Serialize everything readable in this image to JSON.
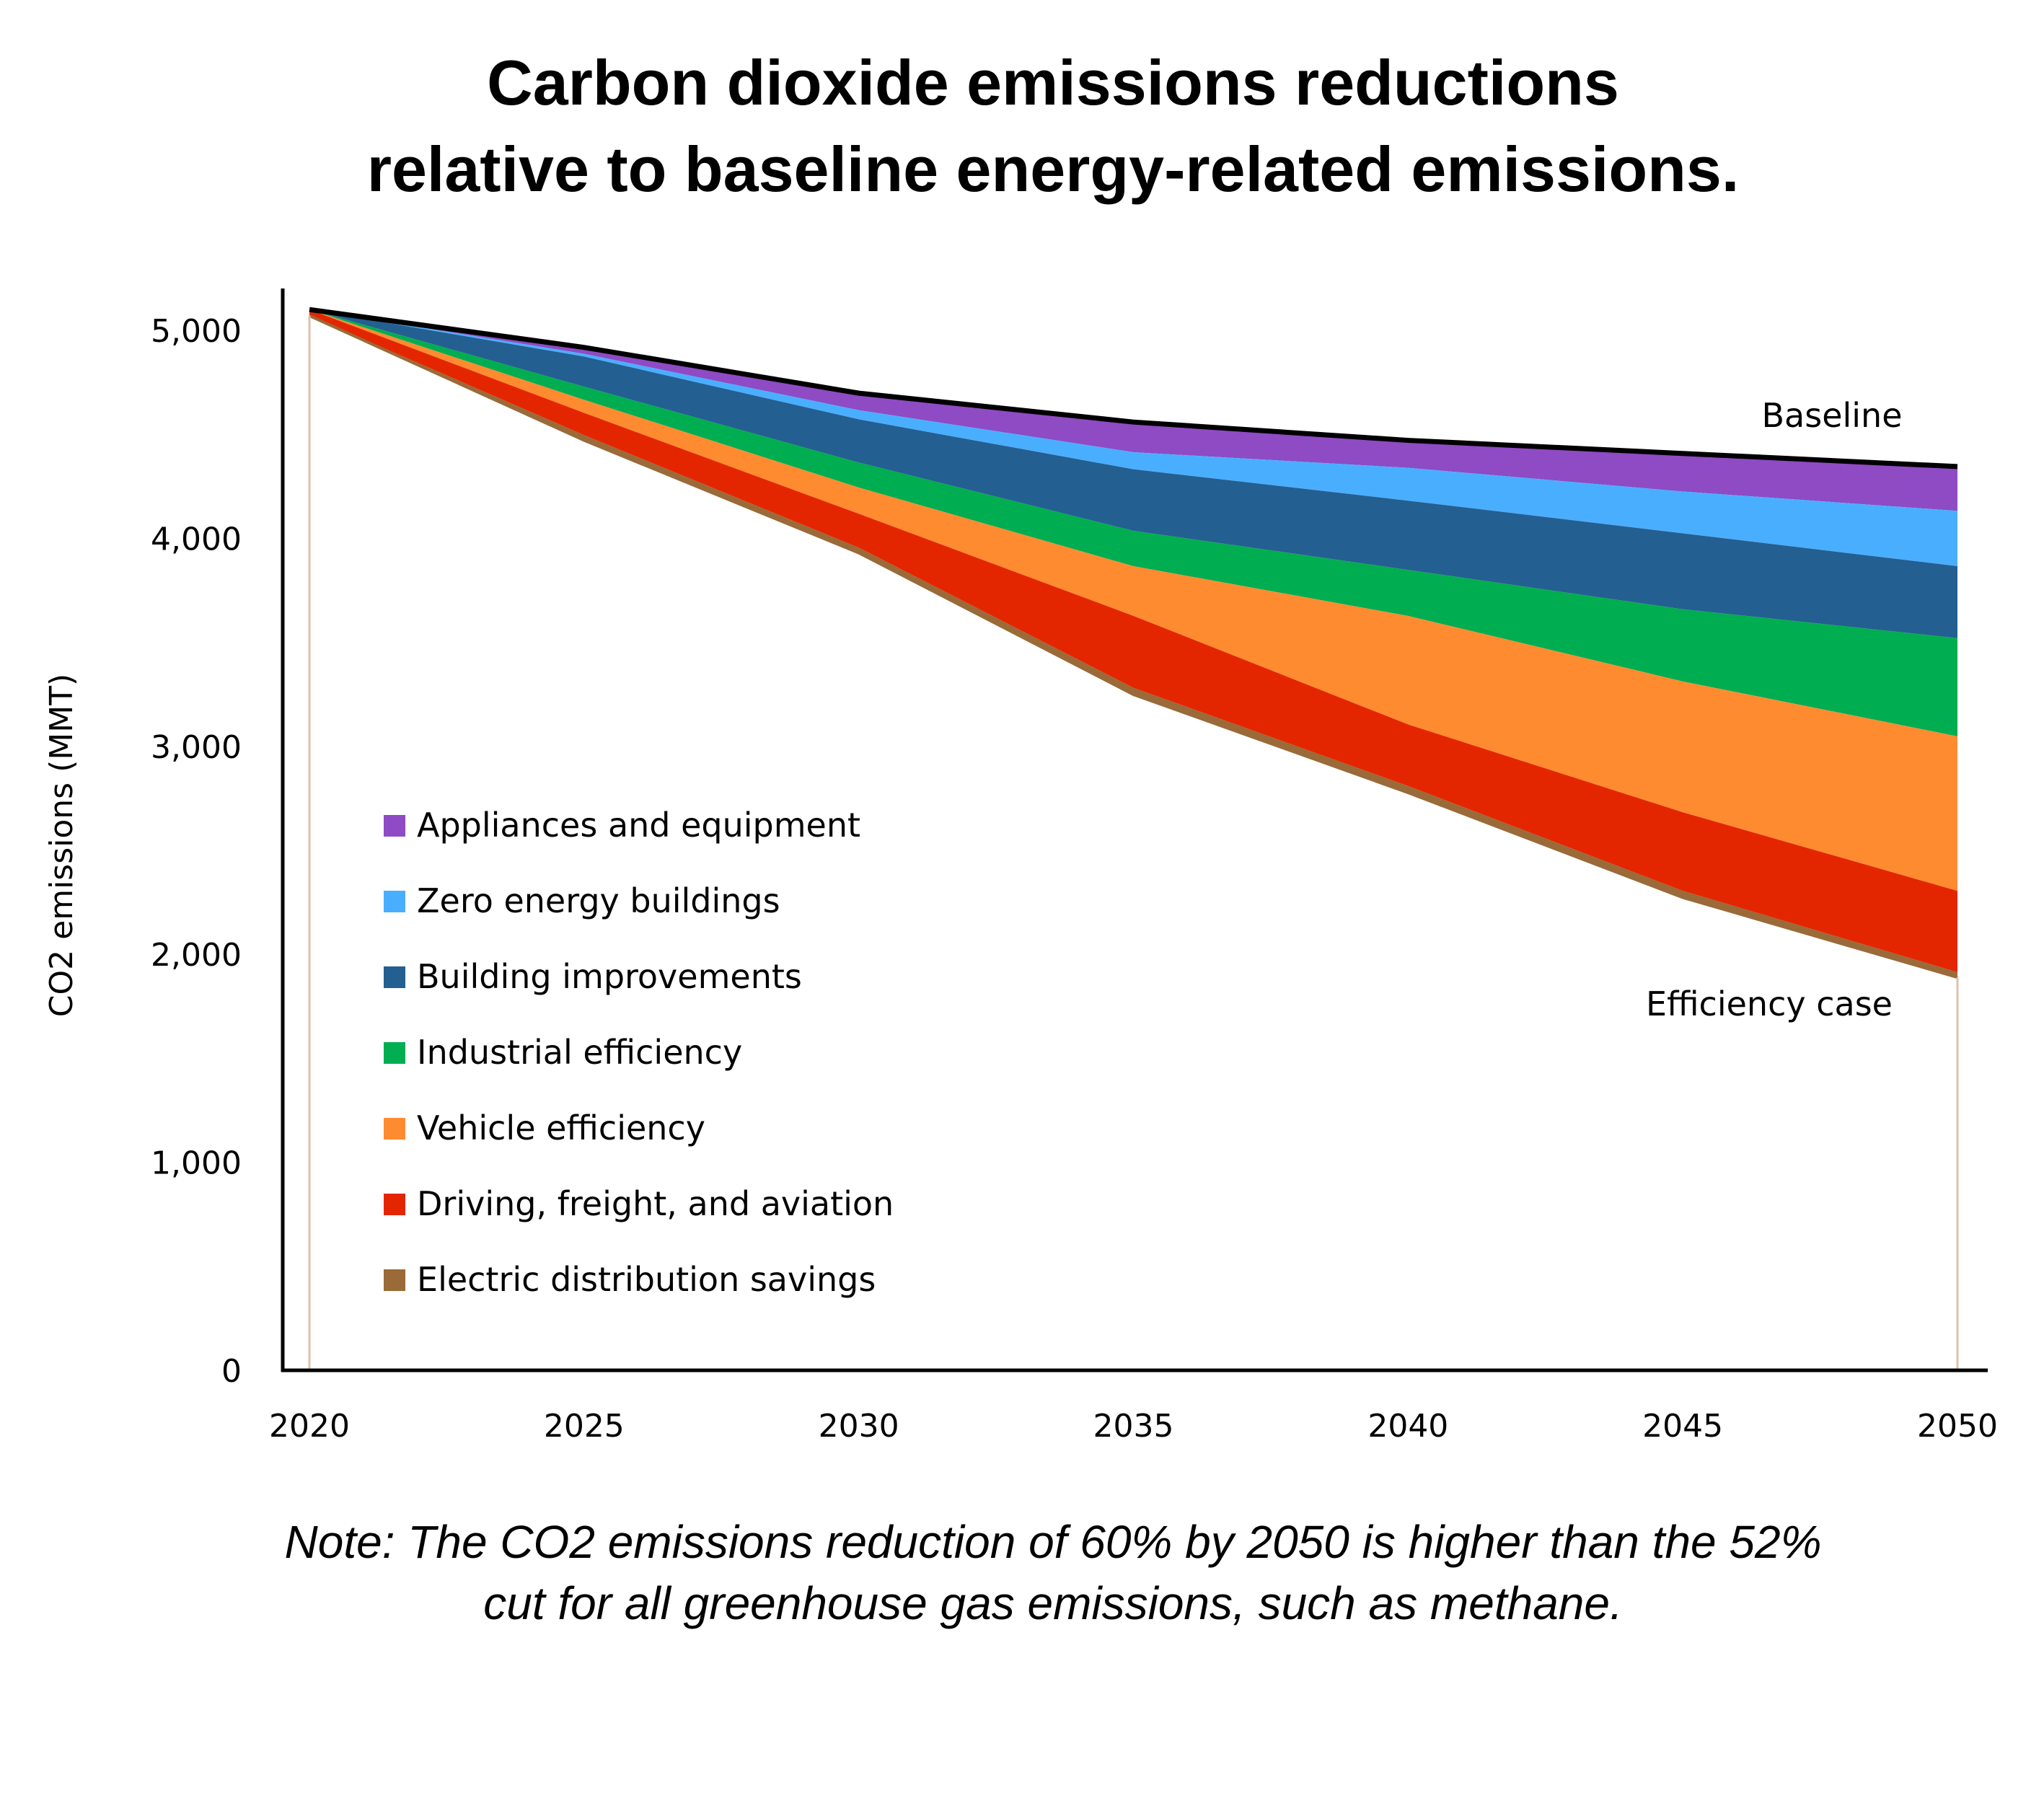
{
  "title_lines": [
    "Carbon dioxide emissions reductions",
    "relative to baseline energy-related emissions."
  ],
  "note_lines": [
    "Note: The CO2 emissions reduction of 60% by 2050 is higher than the 52%",
    "cut for all greenhouse gas emissions, such as methane."
  ],
  "chart_data": {
    "type": "area",
    "stacked": true,
    "ylabel": "CO2 emissions (MMT)",
    "xlabel": "",
    "xlim": [
      2020,
      2050
    ],
    "ylim": [
      0,
      5000
    ],
    "x_ticks": [
      "2020",
      "2025",
      "2030",
      "2035",
      "2040",
      "2045",
      "2050"
    ],
    "y_ticks": [
      "0",
      "1,000",
      "2,000",
      "3,000",
      "4,000",
      "5,000"
    ],
    "grid": false,
    "legend_position": "left",
    "x": [
      2020,
      2025,
      2030,
      2035,
      2040,
      2045,
      2050
    ],
    "baseline": {
      "name": "Baseline",
      "values": [
        5100,
        4918,
        4698,
        4559,
        4471,
        4408,
        4345
      ],
      "color": "#000000"
    },
    "efficiency_case_label": "Efficiency case",
    "series": [
      {
        "name": "Appliances and equipment",
        "color": "#8e4bc4",
        "values": [
          0,
          31,
          82,
          145,
          132,
          183,
          213
        ]
      },
      {
        "name": "Zero energy buildings",
        "color": "#4aaeff",
        "values": [
          0,
          13,
          44,
          82,
          158,
          201,
          266
        ]
      },
      {
        "name": "Building improvements",
        "color": "#245f91",
        "values": [
          0,
          145,
          208,
          296,
          333,
          365,
          346
        ]
      },
      {
        "name": "Industrial efficiency",
        "color": "#00ad50",
        "values": [
          0,
          63,
          120,
          170,
          221,
          347,
          472
        ]
      },
      {
        "name": "Vehicle efficiency",
        "color": "#ff8b31",
        "values": [
          0,
          63,
          126,
          239,
          522,
          629,
          743
        ]
      },
      {
        "name": "Driving, freight, and aviation",
        "color": "#e42600",
        "values": [
          30,
          107,
          163,
          346,
          296,
          378,
          391
        ]
      },
      {
        "name": "Electric distribution savings",
        "color": "#9a6a38",
        "values": [
          0,
          25,
          25,
          32,
          32,
          32,
          25
        ]
      }
    ]
  }
}
